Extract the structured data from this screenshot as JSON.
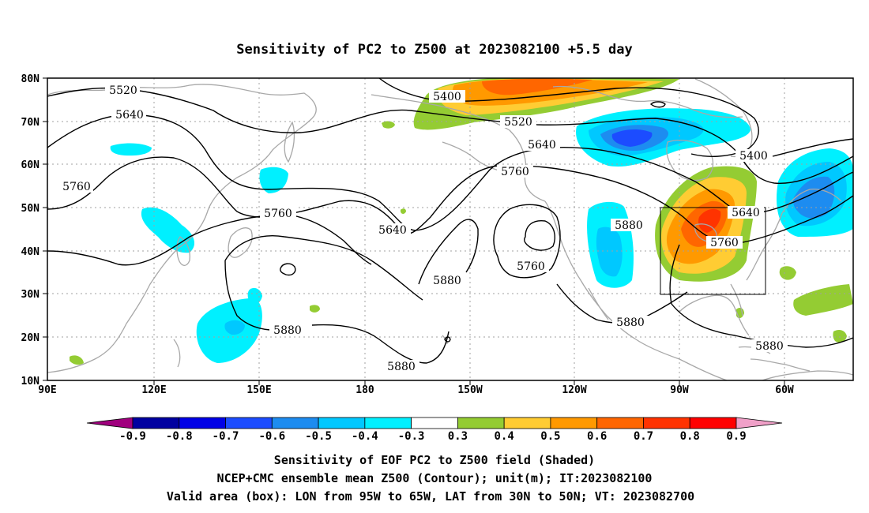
{
  "title": "Sensitivity of PC2 to Z500 at 2023082100 +5.5 day",
  "lat_labels": [
    "80N",
    "70N",
    "60N",
    "50N",
    "40N",
    "30N",
    "20N",
    "10N"
  ],
  "lon_labels": [
    "90E",
    "120E",
    "150E",
    "180",
    "150W",
    "120W",
    "90W",
    "60W"
  ],
  "contour_labels": [
    "5520",
    "5640",
    "5760",
    "5400",
    "5520",
    "5640",
    "5760",
    "5400",
    "5760",
    "5640",
    "5880",
    "5760",
    "5640",
    "5760",
    "5880",
    "5880",
    "5880",
    "5880",
    "5880"
  ],
  "colorbar": {
    "labels": [
      "-0.9",
      "-0.8",
      "-0.7",
      "-0.6",
      "-0.5",
      "-0.4",
      "-0.3",
      "0.3",
      "0.4",
      "0.5",
      "0.6",
      "0.7",
      "0.8",
      "0.9"
    ],
    "colors": [
      "#a0007e",
      "#0000a0",
      "#0000e6",
      "#1c4cff",
      "#1d8cf0",
      "#00c8ff",
      "#00f0ff",
      "#ffffff",
      "#94cc33",
      "#ffcc33",
      "#ff9900",
      "#ff6600",
      "#ff3300",
      "#ff0000",
      "#f0a0c8"
    ]
  },
  "captions": [
    "Sensitivity of EOF PC2 to Z500 field (Shaded)",
    "NCEP+CMC ensemble mean Z500 (Contour); unit(m); IT:2023082100",
    "Valid area (box): LON from 95W to 65W, LAT from 30N to 50N; VT: 2023082700"
  ]
}
